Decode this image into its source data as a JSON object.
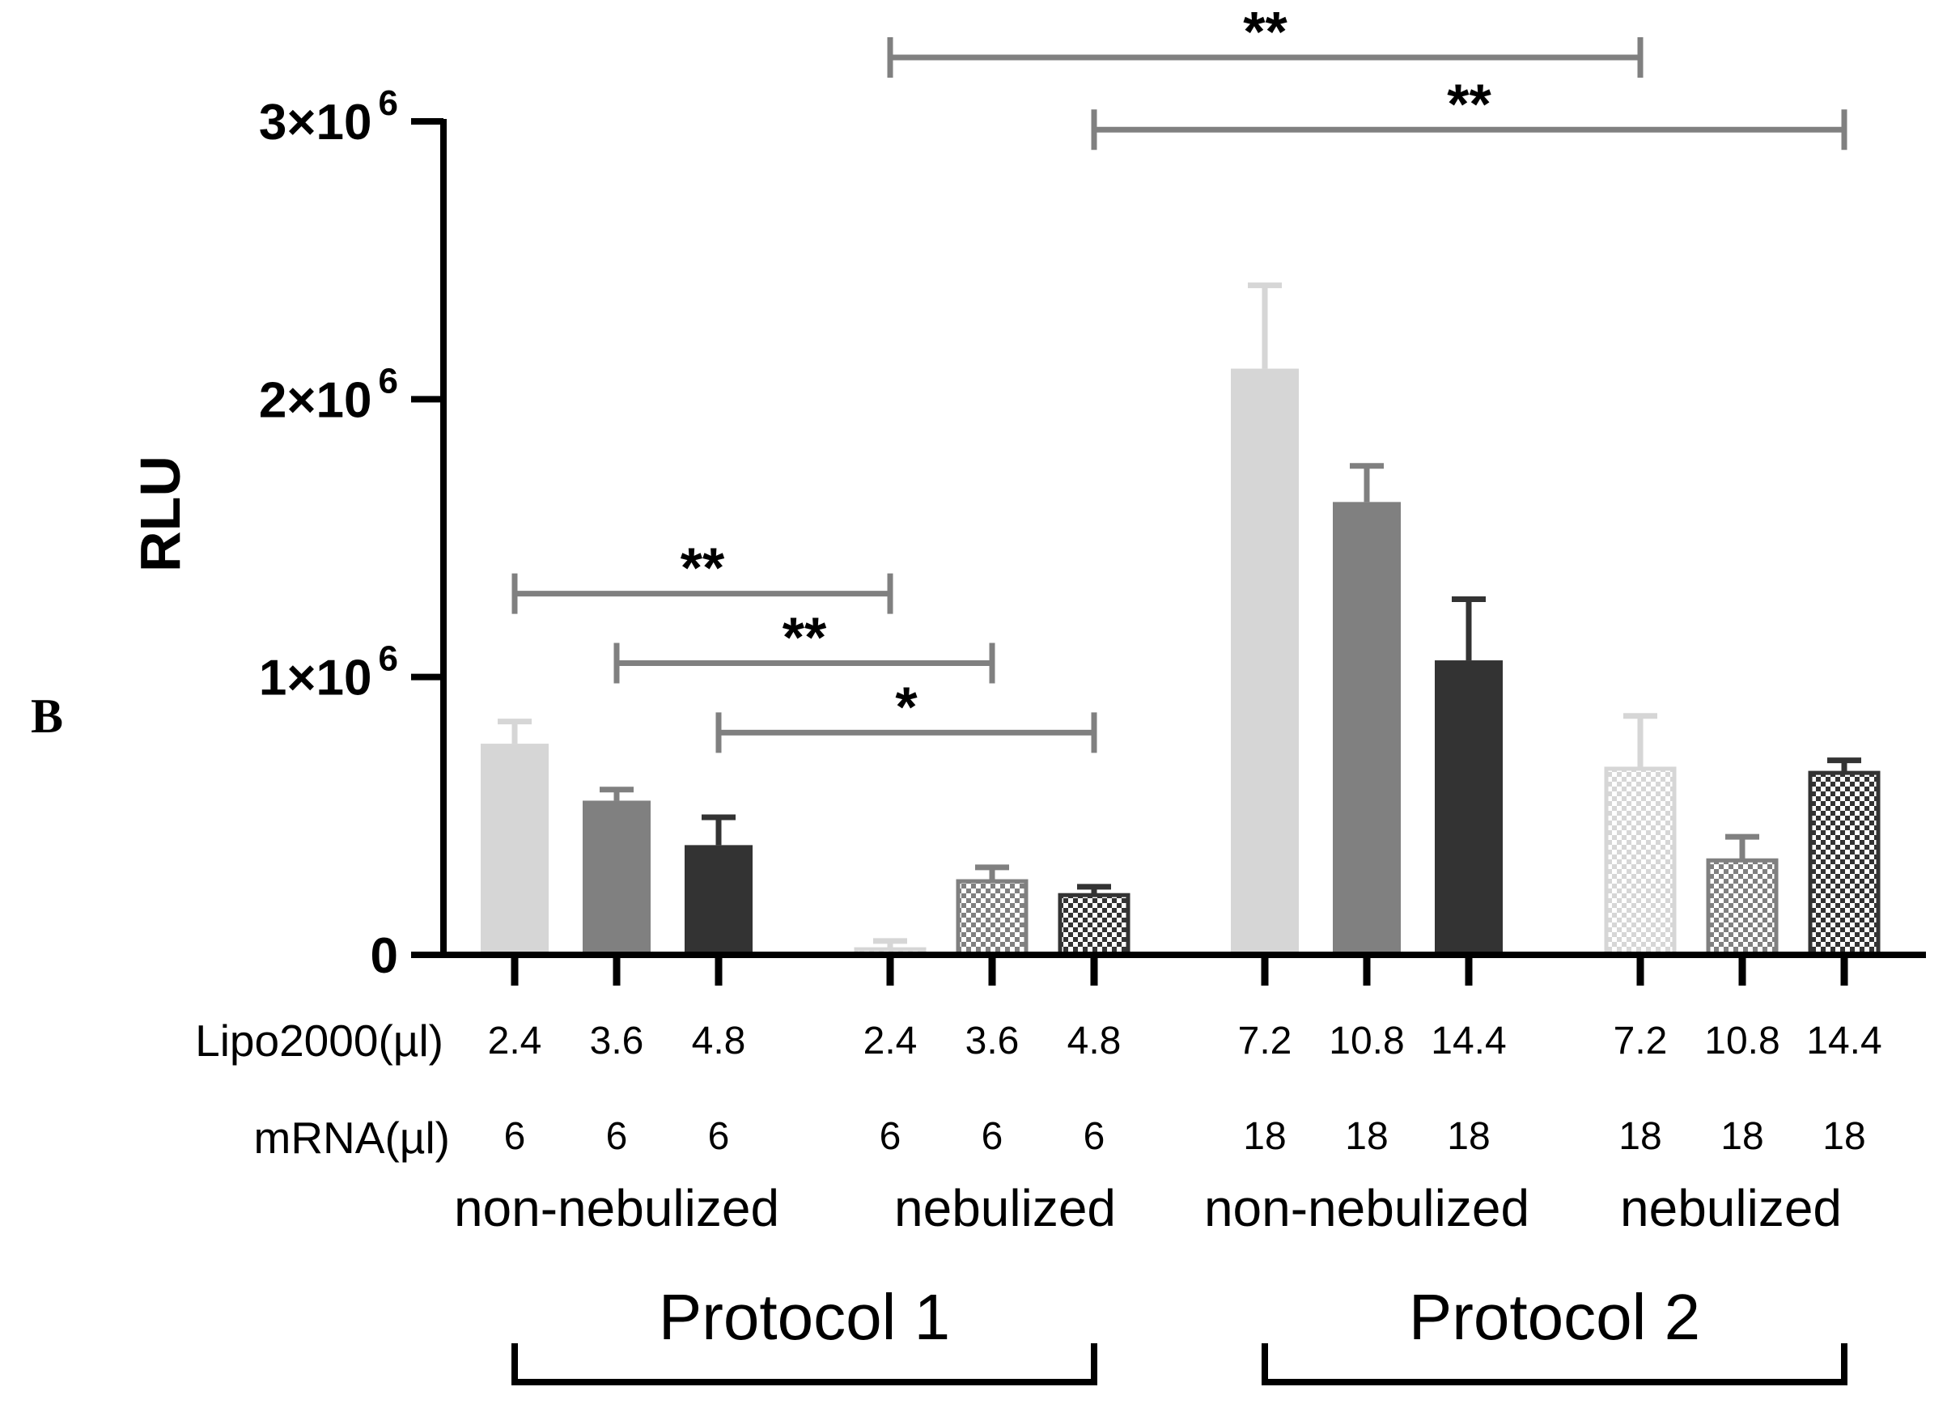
{
  "panel_label": "B",
  "chart_data": {
    "type": "bar",
    "title": "",
    "ylabel": "RLU",
    "xlabel": "",
    "ylim": [
      0,
      3000000
    ],
    "yticks": [
      {
        "value": 0,
        "label": "0",
        "exp": ""
      },
      {
        "value": 1000000,
        "label": "1×10",
        "exp": "6"
      },
      {
        "value": 2000000,
        "label": "2×10",
        "exp": "6"
      },
      {
        "value": 3000000,
        "label": "3×10",
        "exp": "6"
      }
    ],
    "row_labels": {
      "lipo": "Lipo2000(µl)",
      "mrna": "mRNA(µl)"
    },
    "bars": [
      {
        "group": 0,
        "lipo": "2.4",
        "mrna": "6",
        "value": 760000,
        "error": 80000,
        "color": "#d6d6d6",
        "pattern": "solid"
      },
      {
        "group": 0,
        "lipo": "3.6",
        "mrna": "6",
        "value": 555000,
        "error": 40000,
        "color": "#808080",
        "pattern": "solid"
      },
      {
        "group": 0,
        "lipo": "4.8",
        "mrna": "6",
        "value": 395000,
        "error": 100000,
        "color": "#333333",
        "pattern": "solid"
      },
      {
        "group": 1,
        "lipo": "2.4",
        "mrna": "6",
        "value": 20000,
        "error": 30000,
        "color": "#d6d6d6",
        "pattern": "checker"
      },
      {
        "group": 1,
        "lipo": "3.6",
        "mrna": "6",
        "value": 265000,
        "error": 50000,
        "color": "#808080",
        "pattern": "checker"
      },
      {
        "group": 1,
        "lipo": "4.8",
        "mrna": "6",
        "value": 215000,
        "error": 30000,
        "color": "#333333",
        "pattern": "checker"
      },
      {
        "group": 2,
        "lipo": "7.2",
        "mrna": "18",
        "value": 2110000,
        "error": 300000,
        "color": "#d6d6d6",
        "pattern": "solid"
      },
      {
        "group": 2,
        "lipo": "10.8",
        "mrna": "18",
        "value": 1630000,
        "error": 130000,
        "color": "#808080",
        "pattern": "solid"
      },
      {
        "group": 2,
        "lipo": "14.4",
        "mrna": "18",
        "value": 1060000,
        "error": 220000,
        "color": "#333333",
        "pattern": "solid"
      },
      {
        "group": 3,
        "lipo": "7.2",
        "mrna": "18",
        "value": 670000,
        "error": 190000,
        "color": "#d6d6d6",
        "pattern": "checker"
      },
      {
        "group": 3,
        "lipo": "10.8",
        "mrna": "18",
        "value": 340000,
        "error": 85000,
        "color": "#808080",
        "pattern": "checker"
      },
      {
        "group": 3,
        "lipo": "14.4",
        "mrna": "18",
        "value": 655000,
        "error": 45000,
        "color": "#333333",
        "pattern": "checker"
      }
    ],
    "group_labels": [
      {
        "text": "non-nebulized",
        "bars": [
          0,
          2
        ]
      },
      {
        "text": "nebulized",
        "bars": [
          3,
          5
        ]
      },
      {
        "text": "non-nebulized",
        "bars": [
          6,
          8
        ]
      },
      {
        "text": "nebulized",
        "bars": [
          9,
          11
        ]
      }
    ],
    "protocols": [
      {
        "text": "Protocol 1",
        "bars": [
          0,
          5
        ]
      },
      {
        "text": "Protocol 2",
        "bars": [
          6,
          11
        ]
      }
    ],
    "significance": [
      {
        "from": 0,
        "to": 3,
        "y": 1300000,
        "label": "**"
      },
      {
        "from": 1,
        "to": 4,
        "y": 1050000,
        "label": "**"
      },
      {
        "from": 2,
        "to": 5,
        "y": 800000,
        "label": "*"
      },
      {
        "from": 3,
        "to": 9,
        "y": 3230000,
        "label": "**"
      },
      {
        "from": 5,
        "to": 11,
        "y": 2970000,
        "label": "**"
      }
    ],
    "colors": {
      "axis": "#000000",
      "bracket": "#808080",
      "error_light": "#d6d6d6"
    }
  }
}
